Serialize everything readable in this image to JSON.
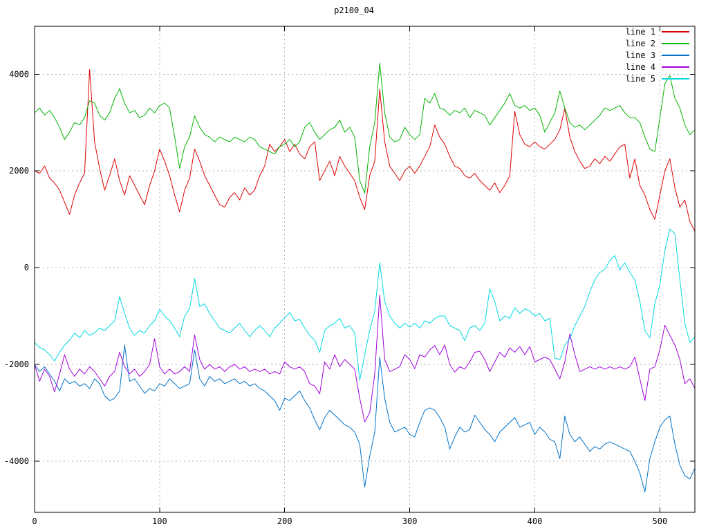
{
  "chart_data": {
    "type": "line",
    "title": "p2100_04",
    "grid": true,
    "legend_position": "top-right",
    "x_axis": {
      "range": [
        0,
        528
      ],
      "ticks": [
        0,
        100,
        200,
        300,
        400,
        500
      ]
    },
    "y_axis": {
      "range": [
        -5060,
        4990
      ],
      "ticks": [
        -4000,
        -2000,
        0,
        2000,
        4000
      ]
    },
    "grid_color": "#b0b0b0",
    "border_color": "#000000",
    "x_start": 0,
    "x_step": 4,
    "series": [
      {
        "name": "line 1",
        "color": "#dd0000",
        "values": [
          2000,
          1950,
          2100,
          1850,
          1750,
          1600,
          1350,
          1100,
          1500,
          1750,
          1950,
          4100,
          2600,
          2050,
          1600,
          1900,
          2250,
          1800,
          1500,
          1900,
          1700,
          1500,
          1300,
          1700,
          2000,
          2450,
          2200,
          1900,
          1500,
          1150,
          1600,
          1850,
          2450,
          2200,
          1900,
          1700,
          1500,
          1300,
          1250,
          1450,
          1550,
          1400,
          1650,
          1500,
          1600,
          1900,
          2100,
          2550,
          2400,
          2500,
          2650,
          2400,
          2550,
          2350,
          2250,
          2500,
          2600,
          1800,
          2000,
          2200,
          1900,
          2300,
          2100,
          1950,
          1800,
          1450,
          1200,
          1900,
          2200,
          3690,
          2600,
          2100,
          1950,
          1800,
          2000,
          2100,
          1950,
          2100,
          2300,
          2500,
          2950,
          2700,
          2550,
          2300,
          2100,
          2050,
          1900,
          1850,
          1950,
          1800,
          1700,
          1600,
          1750,
          1550,
          1700,
          1900,
          3230,
          2750,
          2550,
          2500,
          2600,
          2500,
          2450,
          2550,
          2650,
          2850,
          3290,
          2700,
          2400,
          2200,
          2050,
          2100,
          2250,
          2150,
          2300,
          2200,
          2350,
          2500,
          2550,
          1850,
          2250,
          1700,
          1500,
          1200,
          1000,
          1500,
          2000,
          2250,
          1650,
          1250,
          1400,
          950,
          750
        ]
      },
      {
        "name": "line 2",
        "color": "#00b400",
        "values": [
          3200,
          3300,
          3150,
          3250,
          3100,
          2900,
          2650,
          2800,
          3000,
          2950,
          3100,
          3450,
          3400,
          3150,
          3050,
          3200,
          3500,
          3700,
          3400,
          3200,
          3250,
          3100,
          3150,
          3300,
          3200,
          3350,
          3400,
          3300,
          2700,
          2050,
          2500,
          2700,
          3140,
          2900,
          2750,
          2700,
          2600,
          2700,
          2650,
          2600,
          2700,
          2650,
          2600,
          2700,
          2650,
          2500,
          2450,
          2400,
          2350,
          2500,
          2550,
          2650,
          2500,
          2600,
          2900,
          3000,
          2800,
          2650,
          2750,
          2850,
          2900,
          3050,
          2800,
          2900,
          2700,
          1800,
          1540,
          2500,
          3000,
          4230,
          3200,
          2700,
          2600,
          2650,
          2900,
          2750,
          2650,
          2750,
          3500,
          3400,
          3600,
          3300,
          3260,
          3150,
          3250,
          3200,
          3300,
          3100,
          3250,
          3200,
          3150,
          2950,
          3100,
          3250,
          3400,
          3600,
          3350,
          3300,
          3350,
          3250,
          3300,
          3150,
          2800,
          3000,
          3200,
          3650,
          3300,
          3000,
          2900,
          2950,
          2850,
          2950,
          3050,
          3150,
          3300,
          3250,
          3300,
          3350,
          3200,
          3100,
          3100,
          3000,
          2700,
          2450,
          2400,
          3100,
          3800,
          3970,
          3500,
          3300,
          2950,
          2750,
          2850
        ]
      },
      {
        "name": "line 3",
        "color": "#0072c8",
        "values": [
          -2000,
          -2150,
          -2050,
          -2200,
          -2350,
          -2550,
          -2300,
          -2400,
          -2350,
          -2450,
          -2400,
          -2500,
          -2300,
          -2400,
          -2650,
          -2750,
          -2700,
          -2550,
          -1600,
          -2350,
          -2300,
          -2450,
          -2600,
          -2500,
          -2550,
          -2400,
          -2450,
          -2300,
          -2400,
          -2500,
          -2450,
          -2400,
          -1700,
          -2300,
          -2450,
          -2250,
          -2350,
          -2300,
          -2400,
          -2350,
          -2300,
          -2400,
          -2350,
          -2450,
          -2400,
          -2500,
          -2550,
          -2650,
          -2750,
          -2950,
          -2700,
          -2750,
          -2650,
          -2550,
          -2750,
          -2900,
          -3150,
          -3350,
          -3100,
          -2950,
          -3050,
          -3150,
          -3250,
          -3300,
          -3400,
          -3650,
          -4540,
          -3900,
          -3400,
          -1850,
          -2700,
          -3200,
          -3400,
          -3350,
          -3300,
          -3450,
          -3500,
          -3200,
          -2950,
          -2900,
          -2950,
          -3100,
          -3300,
          -3750,
          -3500,
          -3300,
          -3400,
          -3350,
          -3050,
          -3200,
          -3350,
          -3450,
          -3600,
          -3400,
          -3300,
          -3200,
          -3100,
          -3300,
          -3250,
          -3200,
          -3450,
          -3300,
          -3400,
          -3550,
          -3600,
          -3950,
          -3070,
          -3450,
          -3600,
          -3500,
          -3650,
          -3800,
          -3700,
          -3750,
          -3650,
          -3600,
          -3650,
          -3700,
          -3750,
          -3800,
          -4000,
          -4250,
          -4640,
          -3950,
          -3600,
          -3300,
          -3150,
          -3070,
          -3650,
          -4086,
          -4300,
          -4371,
          -4150
        ]
      },
      {
        "name": "line 4",
        "color": "#a000dc",
        "values": [
          -2000,
          -2350,
          -2100,
          -2250,
          -2570,
          -2200,
          -1800,
          -2100,
          -2250,
          -2100,
          -2200,
          -2050,
          -2150,
          -2300,
          -2450,
          -2250,
          -2150,
          -1750,
          -2050,
          -2200,
          -2100,
          -2250,
          -2150,
          -2000,
          -1470,
          -2050,
          -2200,
          -2100,
          -2200,
          -2150,
          -2050,
          -2150,
          -1390,
          -1900,
          -2100,
          -2000,
          -2100,
          -2050,
          -2150,
          -2050,
          -2000,
          -2100,
          -2050,
          -2150,
          -2100,
          -2150,
          -2100,
          -2200,
          -2150,
          -2200,
          -1950,
          -2050,
          -2100,
          -2050,
          -2150,
          -2400,
          -2450,
          -2610,
          -1950,
          -2100,
          -1800,
          -2050,
          -1900,
          -2000,
          -2100,
          -2700,
          -3190,
          -3000,
          -2200,
          -570,
          -1900,
          -2150,
          -2100,
          -2050,
          -1800,
          -1900,
          -2090,
          -1800,
          -1850,
          -1700,
          -1610,
          -1800,
          -1600,
          -2000,
          -2160,
          -2050,
          -2100,
          -1950,
          -1750,
          -1730,
          -1900,
          -2150,
          -1950,
          -1750,
          -1850,
          -1660,
          -1750,
          -1630,
          -1800,
          -1630,
          -1950,
          -1900,
          -1850,
          -1900,
          -2100,
          -2300,
          -1950,
          -1370,
          -1800,
          -2150,
          -2100,
          -2050,
          -2100,
          -2050,
          -2100,
          -2050,
          -2100,
          -2050,
          -2100,
          -2050,
          -1850,
          -2300,
          -2750,
          -2100,
          -2050,
          -1700,
          -1190,
          -1400,
          -1600,
          -1900,
          -2400,
          -2300,
          -2500
        ]
      },
      {
        "name": "line 5",
        "color": "#00d8e0",
        "values": [
          -1550,
          -1650,
          -1700,
          -1800,
          -1930,
          -1750,
          -1600,
          -1500,
          -1350,
          -1450,
          -1300,
          -1400,
          -1350,
          -1250,
          -1300,
          -1200,
          -1100,
          -600,
          -950,
          -1250,
          -1400,
          -1300,
          -1350,
          -1200,
          -1100,
          -860,
          -1000,
          -1100,
          -1250,
          -1430,
          -1000,
          -850,
          -230,
          -800,
          -750,
          -950,
          -1100,
          -1250,
          -1300,
          -1350,
          -1250,
          -1150,
          -1300,
          -1430,
          -1300,
          -1200,
          -1300,
          -1430,
          -1250,
          -1150,
          -1040,
          -930,
          -1100,
          -1070,
          -1250,
          -1400,
          -1500,
          -1750,
          -1300,
          -1200,
          -1150,
          -1050,
          -1250,
          -1200,
          -1350,
          -2330,
          -1800,
          -1300,
          -900,
          100,
          -700,
          -1000,
          -1150,
          -1250,
          -1150,
          -1230,
          -1150,
          -1250,
          -1100,
          -1150,
          -1050,
          -1000,
          -1000,
          -1200,
          -1250,
          -1300,
          -1510,
          -1250,
          -1200,
          -1300,
          -1150,
          -440,
          -700,
          -1100,
          -1000,
          -1050,
          -830,
          -950,
          -850,
          -900,
          -1000,
          -950,
          -1100,
          -1050,
          -1870,
          -1900,
          -1600,
          -1470,
          -1200,
          -1000,
          -800,
          -500,
          -250,
          -100,
          -40,
          150,
          250,
          -50,
          100,
          -100,
          -250,
          -700,
          -1300,
          -1450,
          -750,
          -350,
          350,
          800,
          700,
          -250,
          -1150,
          -1550,
          -1430
        ]
      }
    ]
  }
}
